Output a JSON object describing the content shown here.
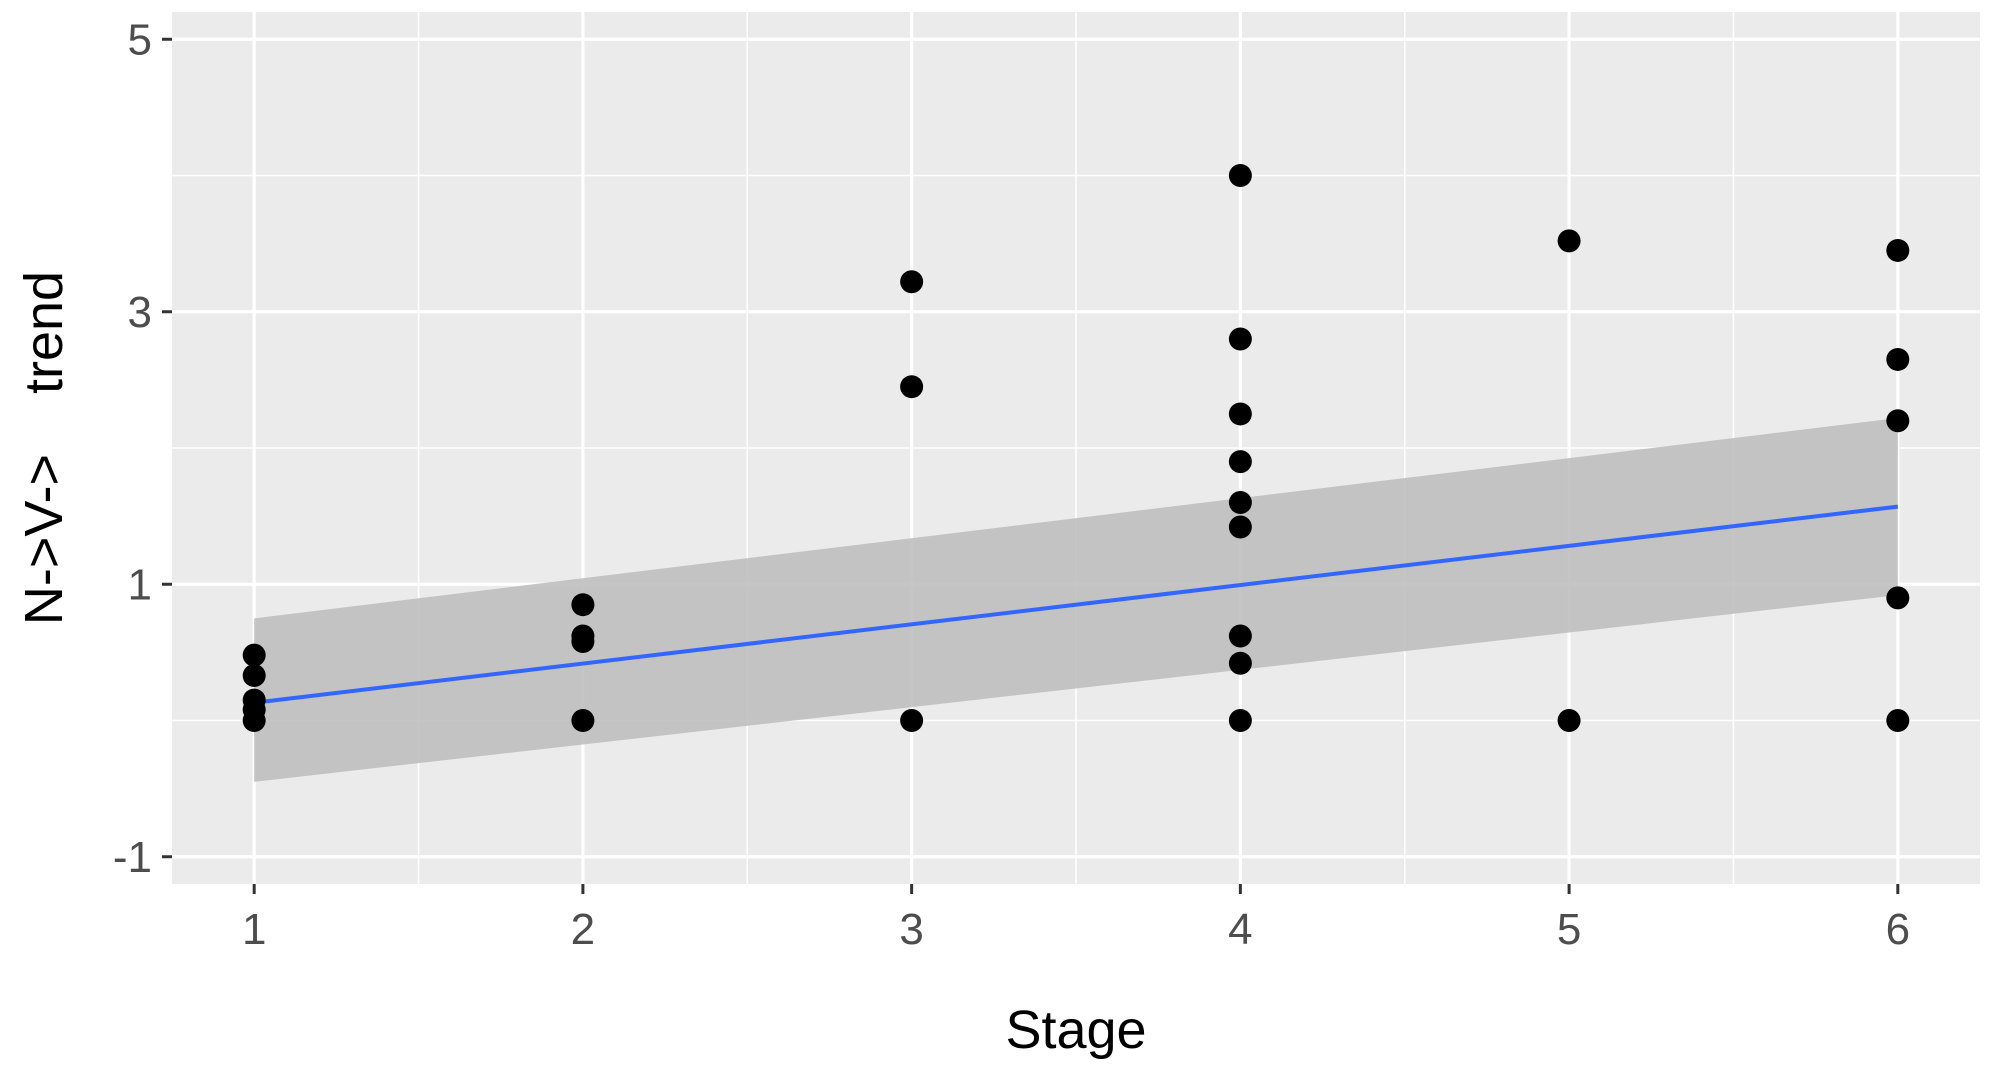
{
  "chart_data": {
    "type": "scatter",
    "title": "",
    "xlabel": "Stage",
    "ylabel": "N->V->    trend",
    "xlim": [
      0.75,
      6.25
    ],
    "ylim": [
      -1.2,
      5.2
    ],
    "x_ticks": [
      1,
      2,
      3,
      4,
      5,
      6
    ],
    "y_ticks": [
      -1,
      1,
      3,
      5
    ],
    "grid": true,
    "points": [
      {
        "x": 1,
        "y": 0.48
      },
      {
        "x": 1,
        "y": 0.33
      },
      {
        "x": 1,
        "y": 0.15
      },
      {
        "x": 1,
        "y": 0.08
      },
      {
        "x": 1,
        "y": 0.0
      },
      {
        "x": 2,
        "y": 0.85
      },
      {
        "x": 2,
        "y": 0.62
      },
      {
        "x": 2,
        "y": 0.58
      },
      {
        "x": 2,
        "y": 0.0
      },
      {
        "x": 3,
        "y": 3.22
      },
      {
        "x": 3,
        "y": 2.45
      },
      {
        "x": 3,
        "y": 0.0
      },
      {
        "x": 4,
        "y": 4.0
      },
      {
        "x": 4,
        "y": 2.8
      },
      {
        "x": 4,
        "y": 2.25
      },
      {
        "x": 4,
        "y": 1.9
      },
      {
        "x": 4,
        "y": 1.6
      },
      {
        "x": 4,
        "y": 1.42
      },
      {
        "x": 4,
        "y": 0.62
      },
      {
        "x": 4,
        "y": 0.42
      },
      {
        "x": 4,
        "y": 0.0
      },
      {
        "x": 5,
        "y": 3.52
      },
      {
        "x": 5,
        "y": 0.0
      },
      {
        "x": 6,
        "y": 3.45
      },
      {
        "x": 6,
        "y": 2.65
      },
      {
        "x": 6,
        "y": 2.2
      },
      {
        "x": 6,
        "y": 0.9
      },
      {
        "x": 6,
        "y": 0.0
      }
    ],
    "fit_line": {
      "x": [
        1,
        6
      ],
      "y": [
        0.13,
        1.57
      ],
      "color": "#3366ff"
    },
    "confidence_band": {
      "x": [
        1,
        6
      ],
      "lower": [
        -0.45,
        0.92
      ],
      "upper": [
        0.75,
        2.22
      ],
      "color": "#bfbfbf"
    },
    "colors": {
      "panel_background": "#ebebeb",
      "grid_line": "#ffffff",
      "point": "#000000"
    }
  }
}
